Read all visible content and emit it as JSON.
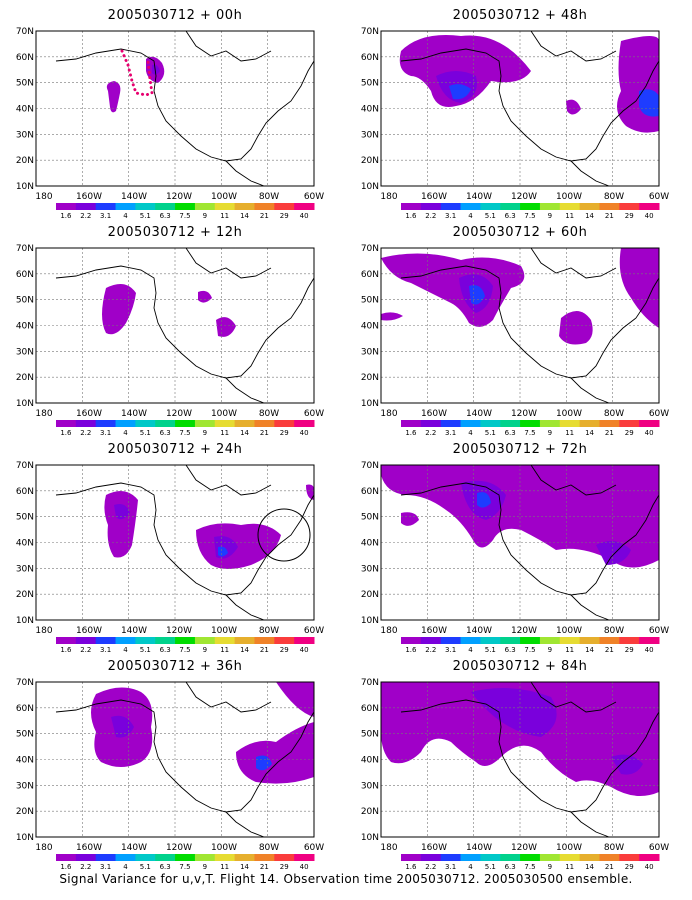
{
  "footer": "Signal Variance for u,v,T. Flight 14. Observation time 2005030712. 2005030500 ensemble.",
  "lat_labels": [
    "70N",
    "60N",
    "50N",
    "40N",
    "30N",
    "20N",
    "10N"
  ],
  "lon_labels": [
    "180",
    "160W",
    "140W",
    "120W",
    "100W",
    "80W",
    "60W"
  ],
  "colorbar": {
    "labels": [
      "1.6",
      "2.2",
      "3.1",
      "4",
      "5.1",
      "6.3",
      "7.5",
      "9",
      "11",
      "14",
      "21",
      "29",
      "40"
    ],
    "colors": [
      "#a000c8",
      "#7a00dc",
      "#1e3cff",
      "#00a0ff",
      "#00c8c8",
      "#00d28c",
      "#00dc00",
      "#a0e632",
      "#e6dc32",
      "#e6af2d",
      "#f08228",
      "#fa3c3c",
      "#f00082"
    ]
  },
  "panels": [
    {
      "title": "2005030712 + 00h"
    },
    {
      "title": "2005030712 + 48h"
    },
    {
      "title": "2005030712 + 12h"
    },
    {
      "title": "2005030712 + 60h"
    },
    {
      "title": "2005030712 + 24h"
    },
    {
      "title": "2005030712 + 72h"
    },
    {
      "title": "2005030712 + 36h"
    },
    {
      "title": "2005030712 + 84h"
    }
  ]
}
